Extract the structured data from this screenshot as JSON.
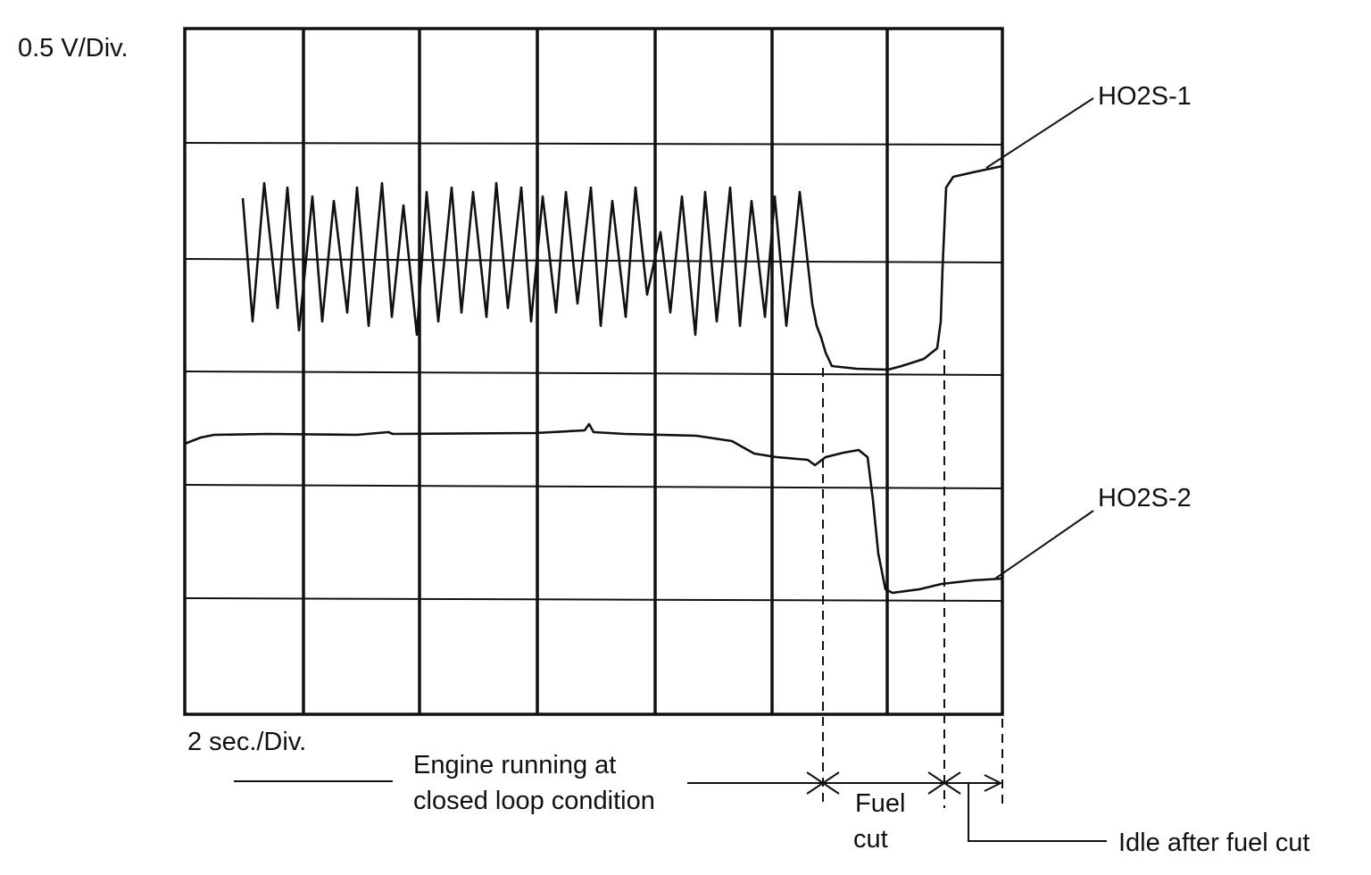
{
  "scale": {
    "vertical": "0.5 V/Div.",
    "horizontal": "2 sec./Div."
  },
  "traces": [
    {
      "label": "HO2S-1"
    },
    {
      "label": "HO2S-2"
    }
  ],
  "phases": [
    {
      "label": [
        "Engine running at",
        "closed loop condition"
      ]
    },
    {
      "label": [
        "Fuel",
        "cut"
      ]
    },
    {
      "label": "Idle after fuel cut"
    }
  ]
}
